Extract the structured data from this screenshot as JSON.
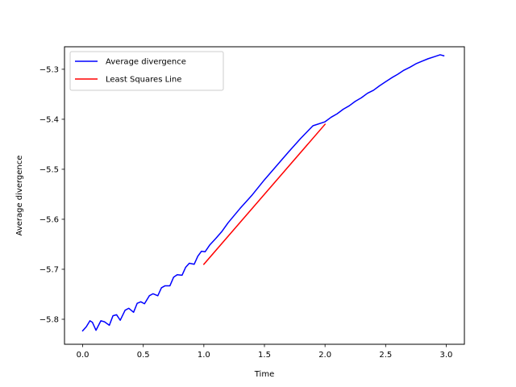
{
  "chart_data": {
    "type": "line",
    "title": "",
    "xlabel": "Time",
    "ylabel": "Average divergence",
    "xlim": [
      -0.15,
      3.15
    ],
    "ylim": [
      -5.85,
      -5.255
    ],
    "xticks": [
      {
        "value": 0.0,
        "label": "0.0"
      },
      {
        "value": 0.5,
        "label": "0.5"
      },
      {
        "value": 1.0,
        "label": "1.0"
      },
      {
        "value": 1.5,
        "label": "1.5"
      },
      {
        "value": 2.0,
        "label": "2.0"
      },
      {
        "value": 2.5,
        "label": "2.5"
      },
      {
        "value": 3.0,
        "label": "3.0"
      }
    ],
    "yticks": [
      {
        "value": -5.8,
        "label": "−5.8"
      },
      {
        "value": -5.7,
        "label": "−5.7"
      },
      {
        "value": -5.6,
        "label": "−5.6"
      },
      {
        "value": -5.5,
        "label": "−5.5"
      },
      {
        "value": -5.4,
        "label": "−5.4"
      },
      {
        "value": -5.3,
        "label": "−5.3"
      }
    ],
    "grid": false,
    "legend_position": "top-left",
    "series": [
      {
        "name": "Average divergence",
        "color": "#0000ff",
        "x": [
          0.0,
          0.03,
          0.06,
          0.08,
          0.11,
          0.15,
          0.18,
          0.22,
          0.25,
          0.28,
          0.31,
          0.35,
          0.38,
          0.42,
          0.45,
          0.48,
          0.51,
          0.55,
          0.58,
          0.62,
          0.65,
          0.68,
          0.72,
          0.75,
          0.78,
          0.82,
          0.85,
          0.88,
          0.92,
          0.95,
          0.98,
          1.01,
          1.05,
          1.1,
          1.15,
          1.2,
          1.3,
          1.4,
          1.5,
          1.6,
          1.7,
          1.8,
          1.9,
          2.0,
          2.05,
          2.1,
          2.15,
          2.2,
          2.25,
          2.3,
          2.35,
          2.4,
          2.45,
          2.5,
          2.55,
          2.6,
          2.65,
          2.7,
          2.75,
          2.8,
          2.85,
          2.9,
          2.95,
          2.98
        ],
        "y": [
          -5.823,
          -5.815,
          -5.803,
          -5.806,
          -5.822,
          -5.803,
          -5.805,
          -5.812,
          -5.793,
          -5.791,
          -5.802,
          -5.782,
          -5.778,
          -5.786,
          -5.768,
          -5.765,
          -5.769,
          -5.753,
          -5.749,
          -5.753,
          -5.737,
          -5.733,
          -5.733,
          -5.716,
          -5.711,
          -5.712,
          -5.696,
          -5.688,
          -5.69,
          -5.674,
          -5.664,
          -5.665,
          -5.651,
          -5.638,
          -5.624,
          -5.607,
          -5.578,
          -5.551,
          -5.521,
          -5.493,
          -5.465,
          -5.438,
          -5.413,
          -5.405,
          -5.396,
          -5.389,
          -5.38,
          -5.373,
          -5.364,
          -5.357,
          -5.348,
          -5.342,
          -5.333,
          -5.325,
          -5.317,
          -5.31,
          -5.302,
          -5.296,
          -5.289,
          -5.284,
          -5.279,
          -5.275,
          -5.271,
          -5.273
        ]
      },
      {
        "name": "Least Squares Line",
        "color": "#ff0000",
        "x": [
          1.0,
          2.0
        ],
        "y": [
          -5.69,
          -5.41
        ]
      }
    ]
  }
}
